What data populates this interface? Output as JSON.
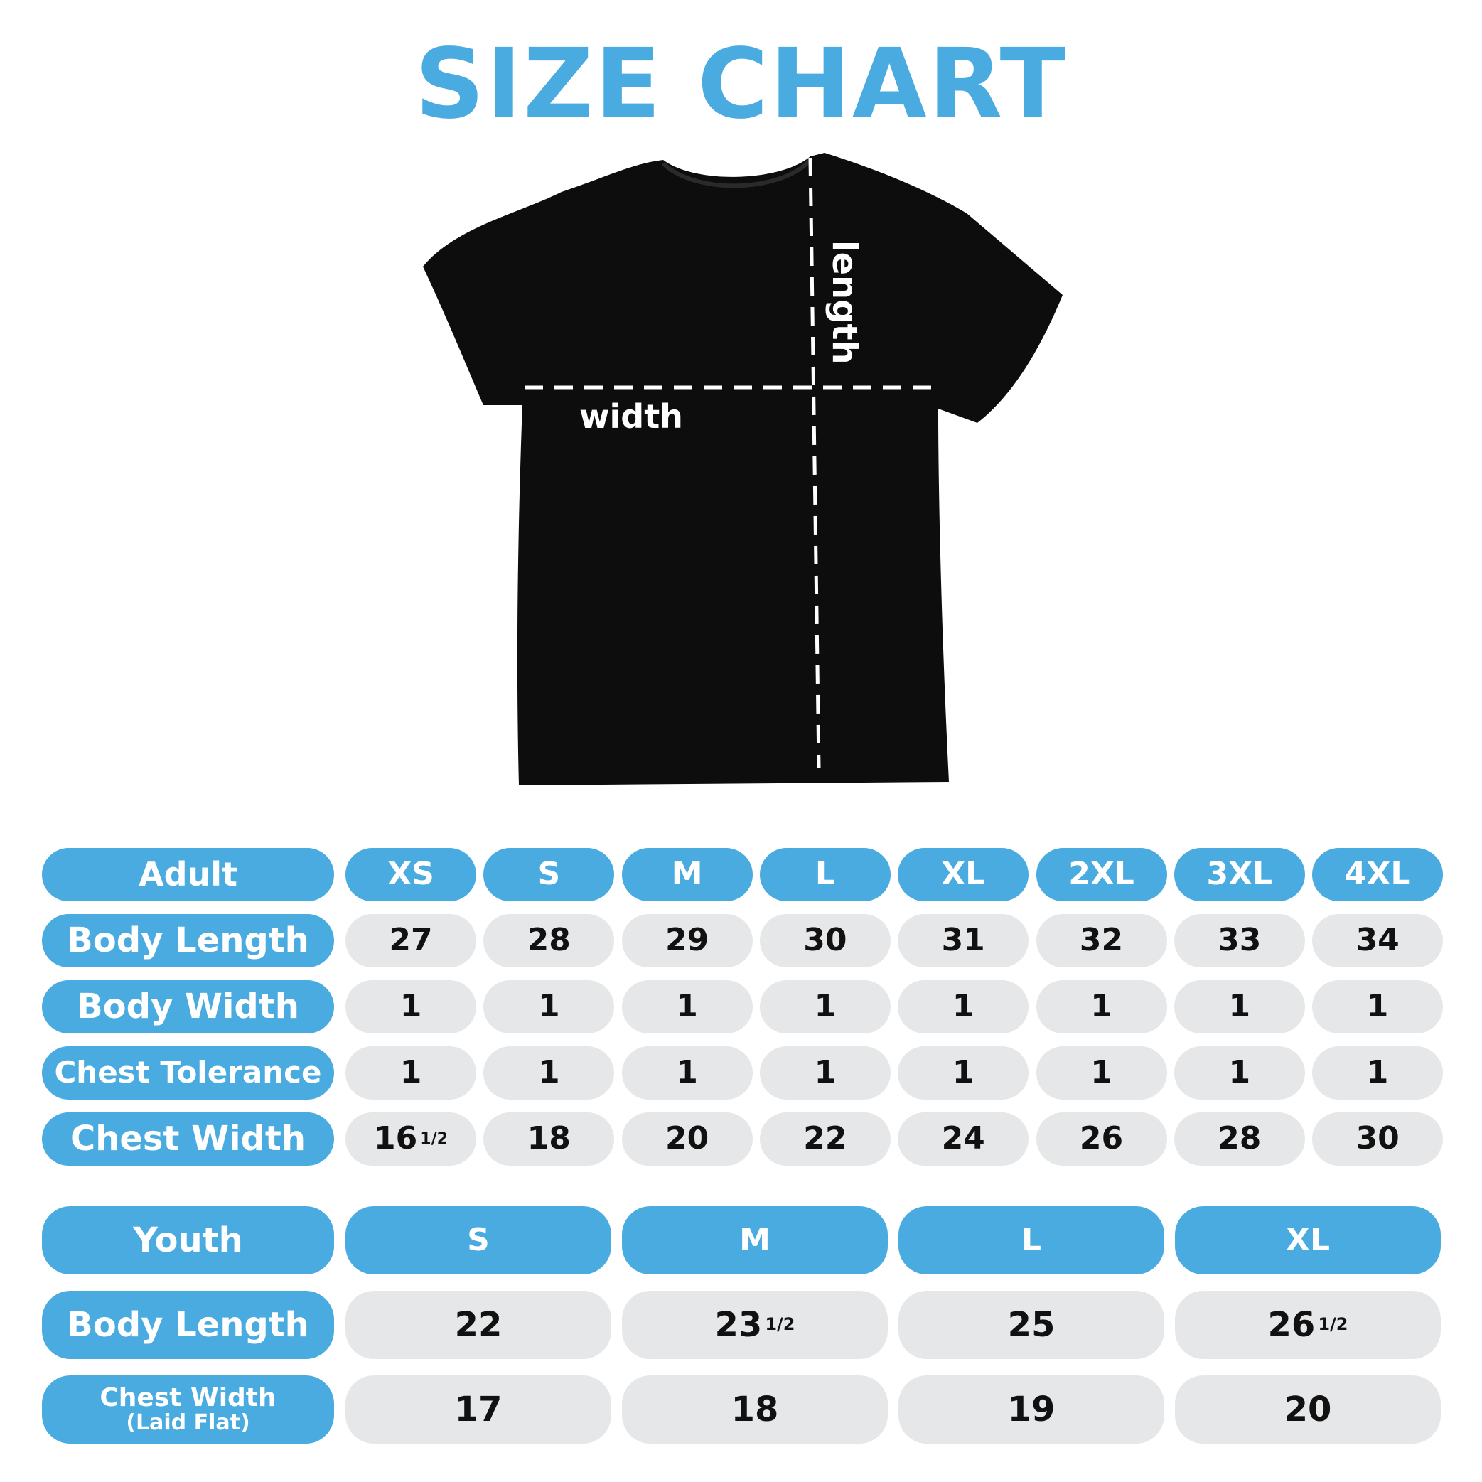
{
  "title": "SIZE CHART",
  "diagram": {
    "length_label": "length",
    "width_label": "width"
  },
  "colors": {
    "accent": "#4aabe0",
    "cell": "#e6e7e8",
    "shirt": "#0d0d0d"
  },
  "adult": {
    "header": "Adult",
    "sizes": [
      "XS",
      "S",
      "M",
      "L",
      "XL",
      "2XL",
      "3XL",
      "4XL"
    ],
    "rows": [
      {
        "label": "Body Length",
        "values": [
          {
            "v": "27"
          },
          {
            "v": "28"
          },
          {
            "v": "29"
          },
          {
            "v": "30"
          },
          {
            "v": "31"
          },
          {
            "v": "32"
          },
          {
            "v": "33"
          },
          {
            "v": "34"
          }
        ]
      },
      {
        "label": "Body Width",
        "values": [
          {
            "v": "1"
          },
          {
            "v": "1"
          },
          {
            "v": "1"
          },
          {
            "v": "1"
          },
          {
            "v": "1"
          },
          {
            "v": "1"
          },
          {
            "v": "1"
          },
          {
            "v": "1"
          }
        ]
      },
      {
        "label": "Chest Tolerance",
        "values": [
          {
            "v": "1"
          },
          {
            "v": "1"
          },
          {
            "v": "1"
          },
          {
            "v": "1"
          },
          {
            "v": "1"
          },
          {
            "v": "1"
          },
          {
            "v": "1"
          },
          {
            "v": "1"
          }
        ]
      },
      {
        "label": "Chest Width",
        "values": [
          {
            "v": "16",
            "f": "1/2"
          },
          {
            "v": "18"
          },
          {
            "v": "20"
          },
          {
            "v": "22"
          },
          {
            "v": "24"
          },
          {
            "v": "26"
          },
          {
            "v": "28"
          },
          {
            "v": "30"
          }
        ]
      }
    ]
  },
  "youth": {
    "header": "Youth",
    "sizes": [
      "S",
      "M",
      "L",
      "XL"
    ],
    "rows": [
      {
        "label": "Body Length",
        "values": [
          {
            "v": "22"
          },
          {
            "v": "23",
            "f": "1/2"
          },
          {
            "v": "25"
          },
          {
            "v": "26",
            "f": "1/2"
          }
        ]
      },
      {
        "label": "Chest Width",
        "sublabel": "(Laid Flat)",
        "values": [
          {
            "v": "17"
          },
          {
            "v": "18"
          },
          {
            "v": "19"
          },
          {
            "v": "20"
          }
        ]
      }
    ]
  }
}
